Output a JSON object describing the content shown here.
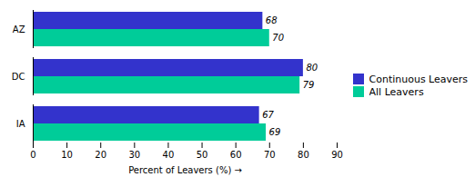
{
  "chart_data": {
    "type": "bar",
    "orientation": "horizontal",
    "categories": [
      "IA",
      "DC",
      "AZ"
    ],
    "series": [
      {
        "name": "Continuous Leavers",
        "color": "#3333cc",
        "values": [
          67,
          80,
          68
        ]
      },
      {
        "name": "All Leavers",
        "color": "#00cc99",
        "values": [
          69,
          79,
          70
        ]
      }
    ],
    "xlabel": "Percent of Leavers (%)",
    "xlim": [
      0,
      90
    ],
    "xticks": [
      0,
      10,
      20,
      30,
      40,
      50,
      60,
      70,
      80,
      90
    ],
    "data_labels": true,
    "legend": "right",
    "grid": false
  }
}
